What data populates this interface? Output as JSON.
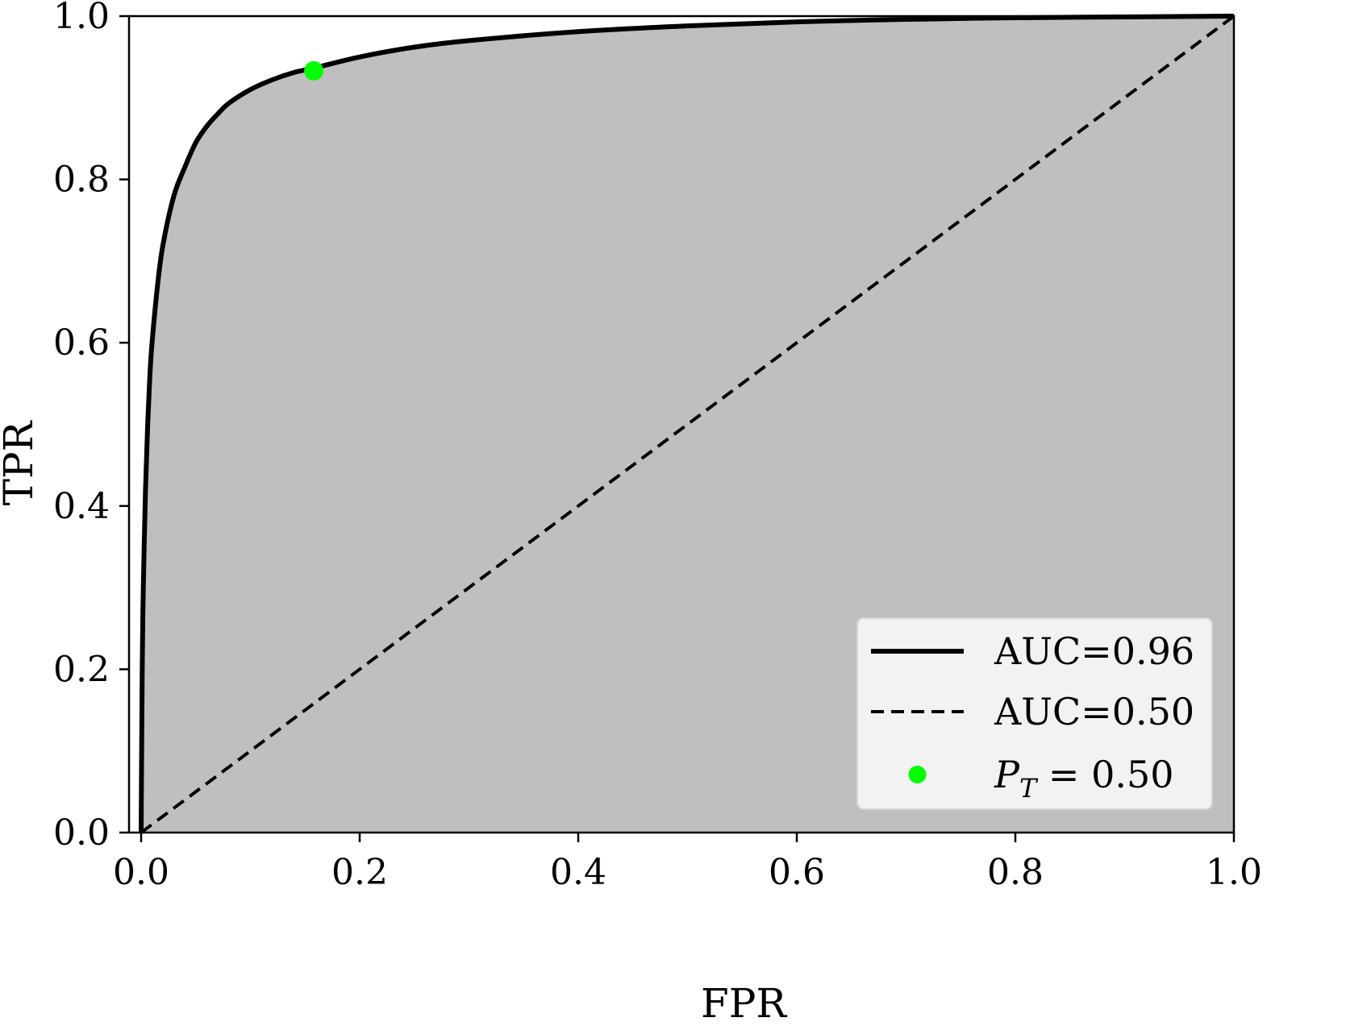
{
  "chart_data": {
    "type": "line",
    "xlabel": "FPR",
    "ylabel": "TPR",
    "xlim": [
      0.0,
      1.0
    ],
    "ylim": [
      0.0,
      1.0
    ],
    "xticks": [
      "0.0",
      "0.2",
      "0.4",
      "0.6",
      "0.8",
      "1.0"
    ],
    "yticks": [
      "0.0",
      "0.2",
      "0.4",
      "0.6",
      "0.8",
      "1.0"
    ],
    "grid": false,
    "legend_position": "lower-right",
    "series": [
      {
        "name": "AUC=0.96",
        "style": "solid",
        "color": "#000000",
        "fill_under": "#bfbfbf",
        "x": [
          0.0,
          0.001,
          0.002,
          0.004,
          0.006,
          0.008,
          0.01,
          0.015,
          0.02,
          0.03,
          0.04,
          0.05,
          0.06,
          0.07,
          0.08,
          0.1,
          0.12,
          0.14,
          0.16,
          0.2,
          0.25,
          0.3,
          0.4,
          0.5,
          0.6,
          0.7,
          0.8,
          0.9,
          1.0
        ],
        "y": [
          0.0,
          0.2,
          0.3,
          0.42,
          0.5,
          0.56,
          0.6,
          0.67,
          0.72,
          0.78,
          0.815,
          0.845,
          0.865,
          0.88,
          0.893,
          0.91,
          0.922,
          0.931,
          0.937,
          0.95,
          0.962,
          0.97,
          0.981,
          0.988,
          0.993,
          0.996,
          0.998,
          0.999,
          1.0
        ]
      },
      {
        "name": "AUC=0.50",
        "style": "dashed",
        "color": "#000000",
        "x": [
          0.0,
          1.0
        ],
        "y": [
          0.0,
          1.0
        ]
      },
      {
        "name": "P_T = 0.50",
        "style": "marker",
        "color": "#00ff00",
        "x": [
          0.158
        ],
        "y": [
          0.933
        ]
      }
    ],
    "legend": [
      {
        "label": "AUC=0.96",
        "style": "solid"
      },
      {
        "label": "AUC=0.50",
        "style": "dashed"
      },
      {
        "label_main": "P",
        "label_sub": "T",
        "label_rest": " = 0.50",
        "style": "marker"
      }
    ]
  }
}
